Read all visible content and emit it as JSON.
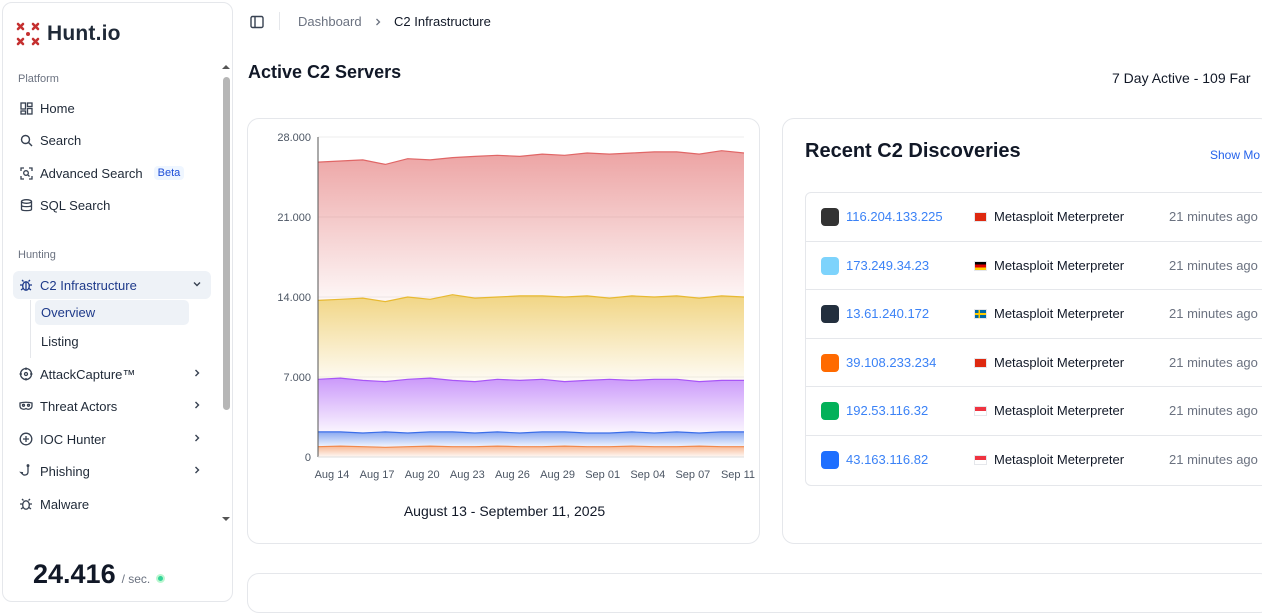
{
  "sidebar": {
    "logo_text": "Hunt.io",
    "platform_label": "Platform",
    "hunting_label": "Hunting",
    "nav": [
      {
        "label": "Home",
        "icon": "dashboard-grid-icon"
      },
      {
        "label": "Search",
        "icon": "search-icon"
      },
      {
        "label": "Advanced Search",
        "icon": "scan-search-icon",
        "badge": "Beta"
      },
      {
        "label": "SQL Search",
        "icon": "database-icon"
      }
    ],
    "hunting": [
      {
        "label": "C2 Infrastructure",
        "icon": "bug-icon",
        "expanded": true
      },
      {
        "label": "AttackCapture™",
        "icon": "target-icon"
      },
      {
        "label": "Threat Actors",
        "icon": "mask-icon"
      },
      {
        "label": "IOC Hunter",
        "icon": "crosshair-plus-icon"
      },
      {
        "label": "Phishing",
        "icon": "fish-hook-icon"
      },
      {
        "label": "Malware",
        "icon": "bug-icon"
      }
    ],
    "sub_items": [
      "Overview",
      "Listing"
    ],
    "rate": {
      "value": "24.416",
      "unit": "/ sec."
    }
  },
  "breadcrumb": {
    "root": "Dashboard",
    "current": "C2 Infrastructure"
  },
  "page": {
    "title": "Active C2 Servers",
    "summary": "7 Day Active - 109 Far"
  },
  "chart_card": {
    "range_label": "August 13 - September 11, 2025"
  },
  "chart_data": {
    "type": "area",
    "title": "",
    "xlabel": "",
    "ylabel": "",
    "ylim": [
      0,
      28000
    ],
    "y_ticks": [
      "0",
      "7.000",
      "14.000",
      "21.000",
      "28.000"
    ],
    "x_ticks": [
      "Aug 14",
      "Aug 17",
      "Aug 20",
      "Aug 23",
      "Aug 26",
      "Aug 29",
      "Sep 01",
      "Sep 04",
      "Sep 07",
      "Sep 11"
    ],
    "grid": true,
    "series": [
      {
        "color": "#e06666",
        "values": [
          25800,
          25900,
          26000,
          25600,
          26100,
          26000,
          26200,
          26300,
          26400,
          26300,
          26500,
          26400,
          26600,
          26500,
          26600,
          26700,
          26700,
          26500,
          26800,
          26600
        ]
      },
      {
        "color": "#e8b931",
        "values": [
          13700,
          13800,
          13900,
          13600,
          14000,
          13800,
          14200,
          13900,
          14000,
          14100,
          14100,
          14000,
          14100,
          13900,
          14100,
          14000,
          14100,
          13900,
          14100,
          14000
        ]
      },
      {
        "color": "#a855f7",
        "values": [
          6800,
          6900,
          6700,
          6600,
          6800,
          6900,
          6700,
          6600,
          6800,
          6700,
          6800,
          6600,
          6700,
          6800,
          6700,
          6800,
          6800,
          6600,
          6700,
          6700
        ]
      },
      {
        "color": "#3b6ee8",
        "values": [
          2200,
          2200,
          2100,
          2200,
          2100,
          2200,
          2200,
          2100,
          2200,
          2100,
          2200,
          2200,
          2100,
          2100,
          2200,
          2100,
          2200,
          2100,
          2200,
          2200
        ]
      },
      {
        "color": "#f2884b",
        "values": [
          900,
          950,
          900,
          850,
          900,
          950,
          900,
          900,
          950,
          900,
          900,
          950,
          900,
          900,
          950,
          900,
          900,
          950,
          900,
          900
        ]
      }
    ]
  },
  "discoveries": {
    "title": "Recent C2 Discoveries",
    "show_more": "Show Mo",
    "rows": [
      {
        "ip": "116.204.133.225",
        "family": "Metasploit Meterpreter",
        "time": "21 minutes ago",
        "flag": "hk",
        "favicon": "columns-logo-icon",
        "fav_color": "#333333"
      },
      {
        "ip": "173.249.34.23",
        "family": "Metasploit Meterpreter",
        "time": "21 minutes ago",
        "flag": "de",
        "favicon": "cloud-logo-icon",
        "fav_color": "#7dd3fc"
      },
      {
        "ip": "13.61.240.172",
        "family": "Metasploit Meterpreter",
        "time": "21 minutes ago",
        "flag": "se",
        "favicon": "aws-logo-icon",
        "fav_color": "#232f3e"
      },
      {
        "ip": "39.108.233.234",
        "family": "Metasploit Meterpreter",
        "time": "21 minutes ago",
        "flag": "cn",
        "favicon": "aliyun-logo-icon",
        "fav_color": "#ff6a00"
      },
      {
        "ip": "192.53.116.32",
        "family": "Metasploit Meterpreter",
        "time": "21 minutes ago",
        "flag": "sg",
        "favicon": "linode-logo-icon",
        "fav_color": "#02b159"
      },
      {
        "ip": "43.163.116.82",
        "family": "Metasploit Meterpreter",
        "time": "21 minutes ago",
        "flag": "sg",
        "favicon": "tencent-logo-icon",
        "fav_color": "#1e6fff"
      }
    ]
  }
}
